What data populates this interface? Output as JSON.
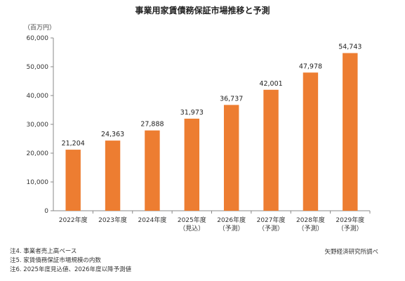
{
  "chart_data": {
    "type": "bar",
    "title": "事業用家賃債務保証市場推移と予測",
    "unit_label": "（百万円）",
    "categories": [
      [
        "2022年度"
      ],
      [
        "2023年度"
      ],
      [
        "2024年度"
      ],
      [
        "2025年度",
        "（見込）"
      ],
      [
        "2026年度",
        "（予測）"
      ],
      [
        "2027年度",
        "（予測）"
      ],
      [
        "2028年度",
        "（予測）"
      ],
      [
        "2029年度",
        "（予測）"
      ]
    ],
    "values": [
      21204,
      24363,
      27888,
      31973,
      36737,
      42001,
      47978,
      54743
    ],
    "value_labels": [
      "21,204",
      "24,363",
      "27,888",
      "31,973",
      "36,737",
      "42,001",
      "47,978",
      "54,743"
    ],
    "ylim": [
      0,
      60000
    ],
    "yticks": [
      0,
      10000,
      20000,
      30000,
      40000,
      50000,
      60000
    ],
    "ytick_labels": [
      "0",
      "10,000",
      "20,000",
      "30,000",
      "40,000",
      "50,000",
      "60,000"
    ],
    "bar_color": "#ED7D31",
    "grid": false,
    "legend": "none"
  },
  "notes": [
    "注4. 事業者売上高ベース",
    "注5. 家賃債務保証市場規模の内数",
    "注6. 2025年度見込値、2026年度以降予測値"
  ],
  "source": "矢野経済研究所調べ"
}
